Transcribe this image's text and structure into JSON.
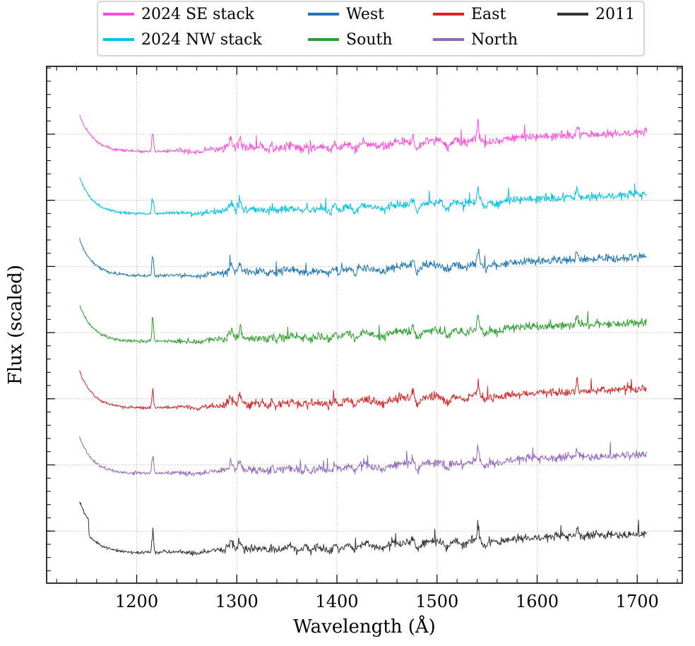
{
  "chart_data": {
    "type": "line",
    "title": "",
    "xlabel": "Wavelength (Å)",
    "ylabel": "Flux (scaled)",
    "xlim": [
      1110,
      1745
    ],
    "xticks": [
      1200,
      1300,
      1400,
      1500,
      1600,
      1700
    ],
    "xtick_labels": [
      "1200",
      "1300",
      "1400",
      "1500",
      "1600",
      "1700"
    ],
    "y_tick_labels_shown": false,
    "grid": true,
    "legend_placement": "top-center (above plot)",
    "legend_columns": 4,
    "x_range_of_spectra": [
      1143,
      1710
    ],
    "series": [
      {
        "name": "2024 SE stack",
        "color": "#ff4fd8",
        "level": 7
      },
      {
        "name": "2024 NW stack",
        "color": "#00c3e6",
        "level": 6
      },
      {
        "name": "West",
        "color": "#1f77b4",
        "level": 5
      },
      {
        "name": "South",
        "color": "#2ca02c",
        "level": 4
      },
      {
        "name": "East",
        "color": "#d62728",
        "level": 3
      },
      {
        "name": "North",
        "color": "#9467bd",
        "level": 2
      },
      {
        "name": "2011",
        "color": "#333333",
        "level": 1
      }
    ],
    "legend_order": [
      "2024 SE stack",
      "West",
      "East",
      "2011",
      "2024 NW stack",
      "South",
      "North"
    ]
  }
}
